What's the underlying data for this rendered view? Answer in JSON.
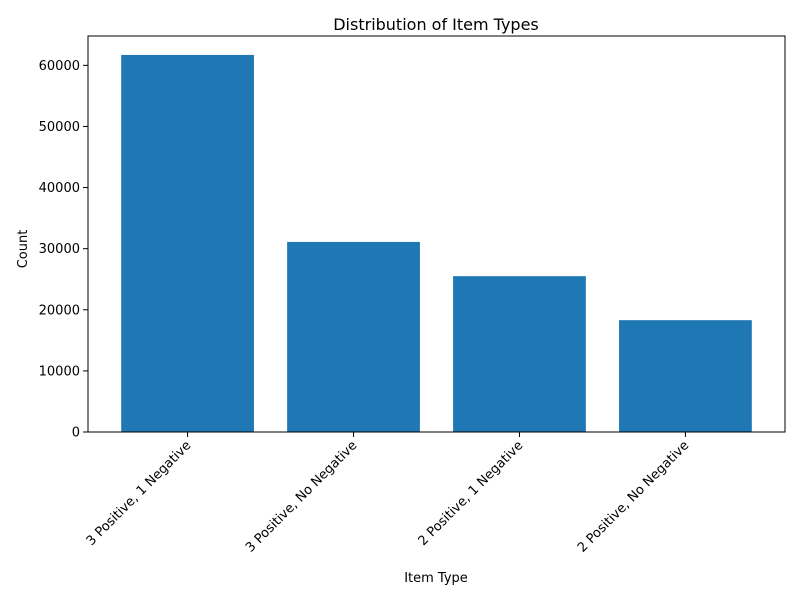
{
  "chart_data": {
    "type": "bar",
    "title": "Distribution of Item Types",
    "xlabel": "Item Type",
    "ylabel": "Count",
    "categories": [
      "3 Positive, 1 Negative",
      "3 Positive, No Negative",
      "2 Positive, 1 Negative",
      "2 Positive, No Negative"
    ],
    "values": [
      61700,
      31100,
      25500,
      18300
    ],
    "ylim": [
      0,
      64800
    ],
    "yticks": [
      0,
      10000,
      20000,
      30000,
      40000,
      50000,
      60000
    ],
    "grid": false,
    "bar_color": "#1f77b4"
  }
}
